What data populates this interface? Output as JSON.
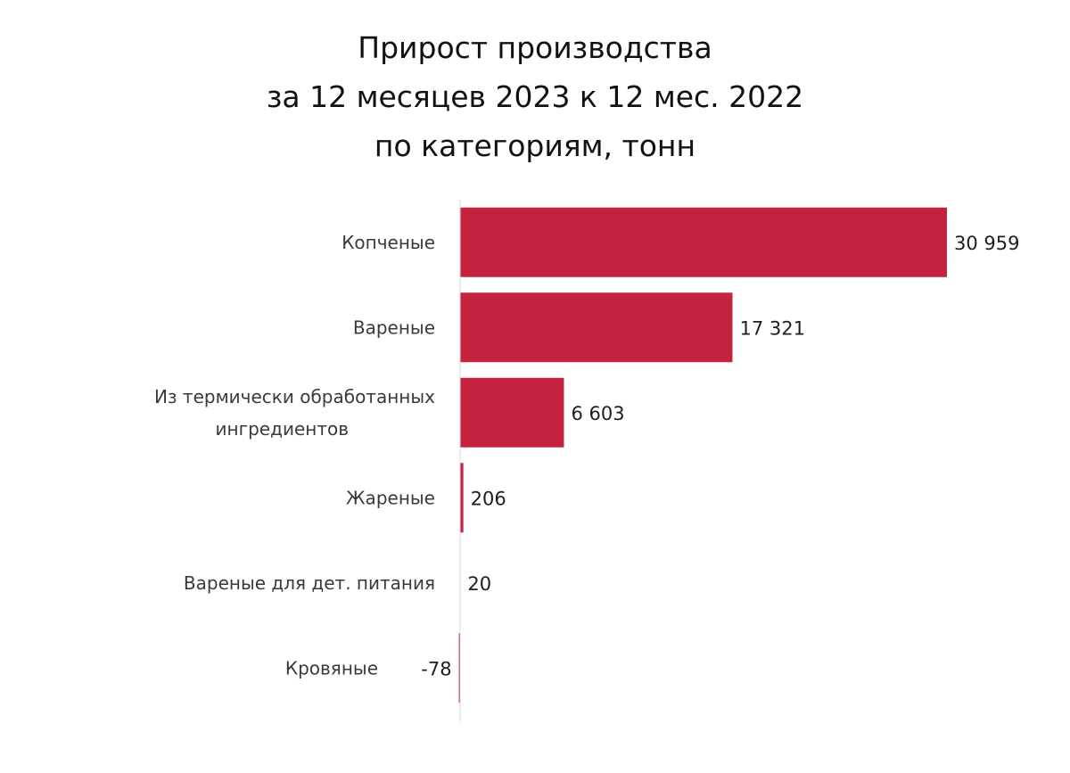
{
  "chart_data": {
    "type": "bar",
    "orientation": "horizontal",
    "title_lines": [
      "Прирост производства",
      "за 12 месяцев 2023 к 12 мес. 2022",
      "по категориям, тонн"
    ],
    "xlabel": "",
    "ylabel": "",
    "categories": [
      [
        "Копченые"
      ],
      [
        "Вареные"
      ],
      [
        "Из термически обработанных",
        "ингредиентов"
      ],
      [
        "Жареные"
      ],
      [
        "Вареные для дет. питания"
      ],
      [
        "Кровяные"
      ]
    ],
    "values": [
      30959,
      17321,
      6603,
      206,
      20,
      -78
    ],
    "value_labels": [
      "30 959",
      "17 321",
      "6 603",
      "206",
      "20",
      "-78"
    ],
    "bar_color": "#c4223f",
    "axis_color": "#d9d9d9",
    "grid": false,
    "legend": "none"
  }
}
